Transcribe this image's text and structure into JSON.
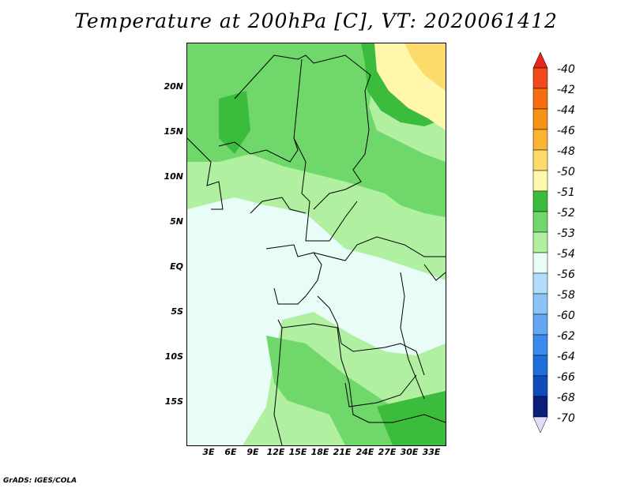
{
  "title": "Temperature at 200hPa [C], VT: 2020061412",
  "credit": "GrADS: IGES/COLA",
  "y_axis": {
    "labels": [
      "20N",
      "15N",
      "10N",
      "5N",
      "EQ",
      "5S",
      "10S",
      "15S"
    ]
  },
  "x_axis": {
    "labels": [
      "3E",
      "6E",
      "9E",
      "12E",
      "15E",
      "18E",
      "21E",
      "24E",
      "27E",
      "30E",
      "33E"
    ]
  },
  "colorbar": {
    "labels": [
      "-40",
      "-42",
      "-44",
      "-46",
      "-48",
      "-50",
      "-51",
      "-52",
      "-53",
      "-54",
      "-56",
      "-58",
      "-60",
      "-62",
      "-64",
      "-66",
      "-68",
      "-70"
    ],
    "colors": [
      "#e8241c",
      "#f24a18",
      "#f76e10",
      "#f79314",
      "#fbb433",
      "#fdda6c",
      "#fff8aa",
      "#3cbc3c",
      "#70d86a",
      "#b0f0a0",
      "#e8fcf8",
      "#b4dcfc",
      "#8cc4f8",
      "#64a8f4",
      "#3a8cec",
      "#1e6edc",
      "#0e4cbc",
      "#0a1e7a",
      "#e0dcfc"
    ]
  },
  "legend_colors": {
    "minus54_56": "#e8fcf8",
    "minus53_54": "#b0f0a0",
    "minus52_53": "#70d86a",
    "minus51_52": "#3cbc3c",
    "minus50_51": "#fff8aa",
    "minus48_50": "#fdda6c"
  }
}
